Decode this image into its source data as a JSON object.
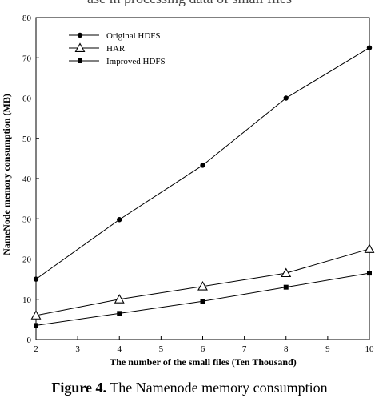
{
  "top_text": "ase in processing data of small files",
  "caption": {
    "label": "Figure 4.",
    "text": "The Namenode memory consumption"
  },
  "chart_data": {
    "type": "line",
    "xlabel": "The number of the small files (Ten Thousand)",
    "ylabel": "NameNode memory consumption (MB)",
    "xlim": [
      2,
      10
    ],
    "ylim": [
      0,
      80
    ],
    "xticks": [
      2,
      3,
      4,
      5,
      6,
      7,
      8,
      9,
      10
    ],
    "yticks": [
      0,
      10,
      20,
      30,
      40,
      50,
      60,
      70,
      80
    ],
    "grid": false,
    "legend_position": "top-left",
    "series": [
      {
        "name": "Original HDFS",
        "marker": "circle",
        "x": [
          2,
          4,
          6,
          8,
          10
        ],
        "y": [
          15,
          29.8,
          43.3,
          60,
          72.5
        ]
      },
      {
        "name": "HAR",
        "marker": "triangle",
        "x": [
          2,
          4,
          6,
          8,
          10
        ],
        "y": [
          6,
          10,
          13.2,
          16.5,
          22.5
        ]
      },
      {
        "name": "Improved HDFS",
        "marker": "square",
        "x": [
          2,
          4,
          6,
          8,
          10
        ],
        "y": [
          3.5,
          6.5,
          9.5,
          13,
          16.5
        ]
      }
    ]
  }
}
